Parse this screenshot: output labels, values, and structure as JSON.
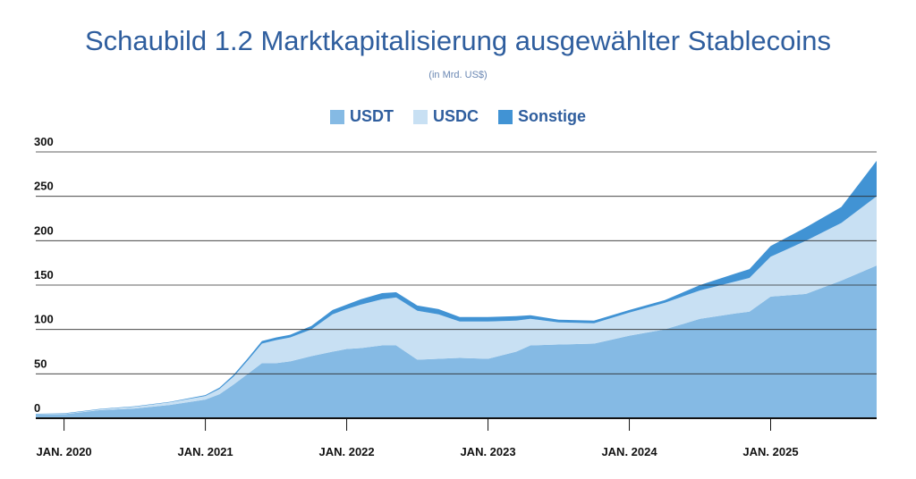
{
  "chart_data": {
    "type": "area",
    "title": "Schaubild 1.2 Marktkapitalisierung ausgewählter Stablecoins",
    "subtitle": "(in Mrd. US$)",
    "stacked": true,
    "grid": true,
    "legend_position": "top-center",
    "ylim": [
      0,
      300
    ],
    "yticks": [
      "0",
      "50",
      "100",
      "150",
      "200",
      "250",
      "300"
    ],
    "xlim": [
      2019.8,
      2025.75
    ],
    "xticks": [
      {
        "label": "JAN. 2020",
        "value": 2020.0
      },
      {
        "label": "JAN. 2021",
        "value": 2021.0
      },
      {
        "label": "JAN. 2022",
        "value": 2022.0
      },
      {
        "label": "JAN. 2023",
        "value": 2023.0
      },
      {
        "label": "JAN. 2024",
        "value": 2024.0
      },
      {
        "label": "JAN. 2025",
        "value": 2025.0
      }
    ],
    "x": [
      2019.8,
      2020.0,
      2020.25,
      2020.5,
      2020.75,
      2021.0,
      2021.1,
      2021.2,
      2021.3,
      2021.4,
      2021.5,
      2021.6,
      2021.75,
      2021.9,
      2022.0,
      2022.1,
      2022.25,
      2022.35,
      2022.5,
      2022.65,
      2022.8,
      2023.0,
      2023.2,
      2023.3,
      2023.5,
      2023.75,
      2024.0,
      2024.25,
      2024.5,
      2024.75,
      2024.85,
      2025.0,
      2025.25,
      2025.5,
      2025.75
    ],
    "series": [
      {
        "name": "USDT",
        "color": "#85bae4",
        "values": [
          4,
          4.5,
          9,
          11,
          15,
          21,
          27,
          38,
          50,
          62,
          62,
          64,
          70,
          75,
          78,
          79,
          82,
          82,
          66,
          67,
          68,
          67,
          75,
          82,
          83,
          84,
          93,
          100,
          112,
          118,
          120,
          137,
          140,
          155,
          172
        ]
      },
      {
        "name": "USDC",
        "color": "#c8e0f3",
        "values": [
          0.5,
          0.5,
          1,
          2,
          3,
          4,
          6,
          9,
          15,
          22,
          26,
          27,
          30,
          42,
          45,
          49,
          52,
          54,
          55,
          50,
          41,
          42,
          35,
          30,
          25,
          23,
          26,
          30,
          32,
          36,
          38,
          45,
          60,
          65,
          78
        ]
      },
      {
        "name": "Sonstige",
        "color": "#4193d4",
        "values": [
          0.5,
          0.5,
          0.5,
          0.5,
          0.5,
          1,
          1.5,
          2,
          2.5,
          3,
          3,
          3,
          4,
          5,
          5,
          6,
          7,
          6,
          6,
          6,
          5,
          5,
          5,
          4,
          3,
          3,
          3,
          3,
          6,
          9,
          10,
          12,
          15,
          18,
          40
        ]
      }
    ]
  }
}
